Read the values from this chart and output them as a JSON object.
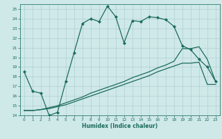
{
  "title": "",
  "xlabel": "Humidex (Indice chaleur)",
  "bg_color": "#cfe8e8",
  "grid_color": "#b0d0d0",
  "line_color": "#1a6b5a",
  "spine_color": "#2a7a6a",
  "xlim": [
    -0.5,
    23.5
  ],
  "ylim": [
    14,
    25.5
  ],
  "xticks": [
    0,
    1,
    2,
    3,
    4,
    5,
    6,
    7,
    8,
    9,
    10,
    11,
    12,
    13,
    14,
    15,
    16,
    17,
    18,
    19,
    20,
    21,
    22,
    23
  ],
  "yticks": [
    14,
    15,
    16,
    17,
    18,
    19,
    20,
    21,
    22,
    23,
    24,
    25
  ],
  "line1_x": [
    0,
    1,
    2,
    3,
    4,
    5,
    6,
    7,
    8,
    9,
    10,
    11,
    12,
    13,
    14,
    15,
    16,
    17,
    18,
    19,
    20,
    21,
    22,
    23
  ],
  "line1_y": [
    18.5,
    16.5,
    16.3,
    14.0,
    14.3,
    17.5,
    20.5,
    23.5,
    24.0,
    23.7,
    25.3,
    24.2,
    21.5,
    23.8,
    23.7,
    24.2,
    24.1,
    23.9,
    23.2,
    21.2,
    20.8,
    19.8,
    19.0,
    17.5
  ],
  "line2_x": [
    0,
    1,
    2,
    3,
    4,
    5,
    6,
    7,
    8,
    9,
    10,
    11,
    12,
    13,
    14,
    15,
    16,
    17,
    18,
    19,
    20,
    21,
    22,
    23
  ],
  "line2_y": [
    14.5,
    14.5,
    14.6,
    14.8,
    15.0,
    15.3,
    15.6,
    15.9,
    16.3,
    16.6,
    16.9,
    17.2,
    17.5,
    17.9,
    18.2,
    18.5,
    18.9,
    19.2,
    19.6,
    20.9,
    20.9,
    21.1,
    19.8,
    17.5
  ],
  "line3_x": [
    0,
    1,
    2,
    3,
    4,
    5,
    6,
    7,
    8,
    9,
    10,
    11,
    12,
    13,
    14,
    15,
    16,
    17,
    18,
    19,
    20,
    21,
    22,
    23
  ],
  "line3_y": [
    14.5,
    14.5,
    14.6,
    14.7,
    14.9,
    15.1,
    15.4,
    15.7,
    16.0,
    16.3,
    16.6,
    16.9,
    17.2,
    17.5,
    17.8,
    18.1,
    18.5,
    18.8,
    19.1,
    19.4,
    19.4,
    19.5,
    17.2,
    17.2
  ]
}
